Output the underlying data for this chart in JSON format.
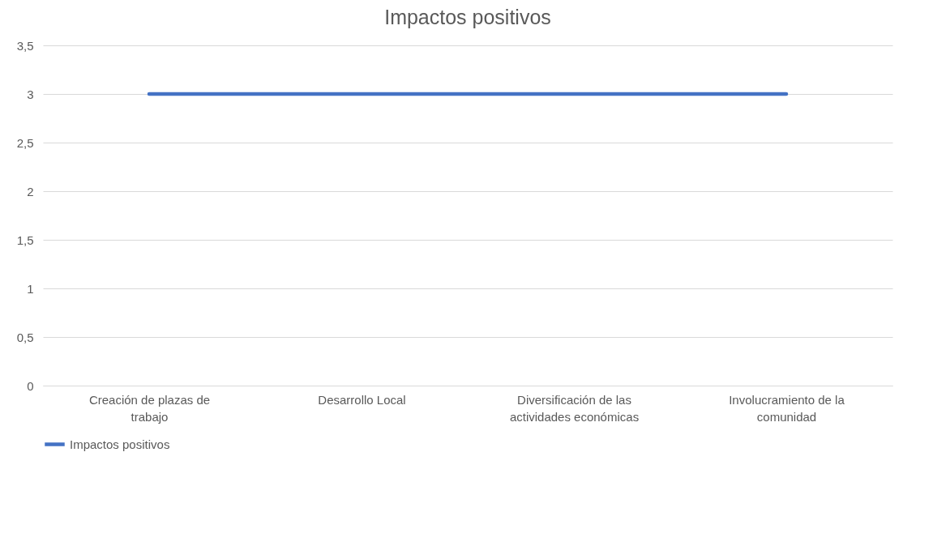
{
  "chart_data": {
    "type": "line",
    "title": "Impactos positivos",
    "categories": [
      "Creación de plazas de trabajo",
      "Desarrollo Local",
      "Diversificación de las actividades económicas",
      "Involucramiento de la comunidad"
    ],
    "series": [
      {
        "name": "Impactos positivos",
        "color": "#4472c4",
        "values": [
          3,
          3,
          3,
          3
        ]
      }
    ],
    "ylim": [
      0,
      3.5
    ],
    "yticks": [
      0,
      {
        "value": 0.5,
        "label": "0,5"
      },
      1,
      {
        "value": 1.5,
        "label": "1,5"
      },
      2,
      {
        "value": 2.5,
        "label": "2,5"
      },
      3,
      {
        "value": 3.5,
        "label": "3,5"
      }
    ],
    "grid": "y",
    "legend": "bottom",
    "marker": "none",
    "line_style": "solid"
  }
}
